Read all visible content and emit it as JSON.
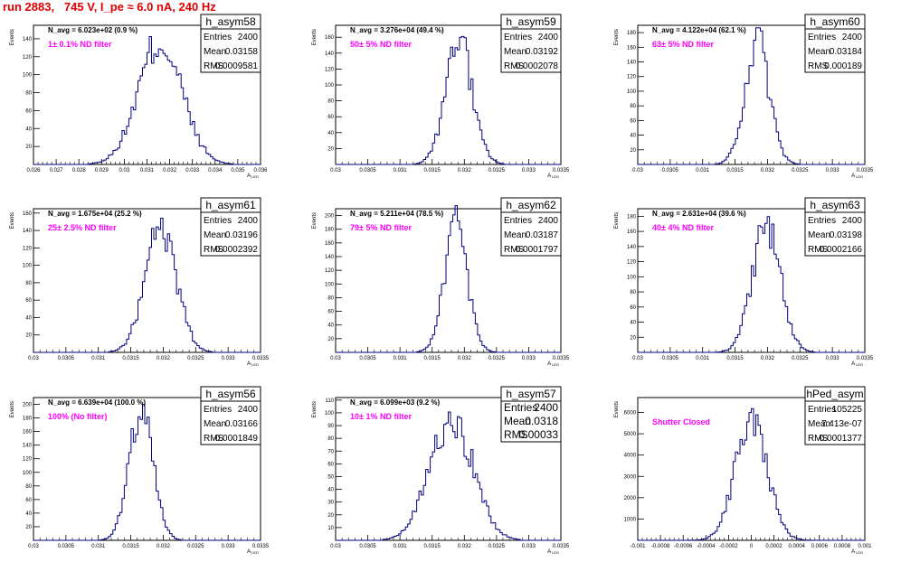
{
  "title": "run 2883,   745 V, I_pe ≈ 6.0 nA, 240 Hz",
  "colors": {
    "title": "#e00000",
    "histogram": "#000080",
    "annotation": "#ff00ff"
  },
  "chart_data": [
    {
      "type": "histogram",
      "name": "h_asym58",
      "navg": "N_avg = 6.023e+02 (0.9 %)",
      "annotation": "1± 0.1% ND filter",
      "entries": "2400",
      "mean": "0.03158",
      "rms": "0.0009581",
      "xlim": [
        0.026,
        0.036
      ],
      "ylim": [
        0,
        155
      ],
      "xticks": [
        "0.026",
        "0.027",
        "0.028",
        "0.029",
        "0.03",
        "0.031",
        "0.032",
        "0.033",
        "0.034",
        "0.035",
        "0.036"
      ],
      "yticks": [
        20,
        40,
        60,
        80,
        100,
        120,
        140
      ],
      "ylabel": "Events",
      "xlabel": "A_LED"
    },
    {
      "type": "histogram",
      "name": "h_asym59",
      "navg": "N_avg = 3.276e+04 (49.4 %)",
      "annotation": "50± 5% ND filter",
      "entries": "2400",
      "mean": "0.03192",
      "rms": "0.0002078",
      "xlim": [
        0.03,
        0.0335
      ],
      "ylim": [
        0,
        175
      ],
      "xticks": [
        "0.03",
        "0.0305",
        "0.031",
        "0.0315",
        "0.032",
        "0.0325",
        "0.033",
        "0.0335"
      ],
      "yticks": [
        20,
        40,
        60,
        80,
        100,
        120,
        140,
        160
      ],
      "ylabel": "Events",
      "xlabel": "A_LED"
    },
    {
      "type": "histogram",
      "name": "h_asym60",
      "navg": "N_avg = 4.122e+04 (62.1 %)",
      "annotation": "63± 5% ND filter",
      "entries": "2400",
      "mean": "0.03184",
      "rms": "0.000189",
      "xlim": [
        0.03,
        0.0335
      ],
      "ylim": [
        0,
        190
      ],
      "xticks": [
        "0.03",
        "0.0305",
        "0.031",
        "0.0315",
        "0.032",
        "0.0325",
        "0.033",
        "0.0335"
      ],
      "yticks": [
        20,
        40,
        60,
        80,
        100,
        120,
        140,
        160,
        180
      ],
      "ylabel": "Events",
      "xlabel": "A_LED"
    },
    {
      "type": "histogram",
      "name": "h_asym61",
      "navg": "N_avg = 1.675e+04 (25.2 %)",
      "annotation": "25± 2.5% ND filter",
      "entries": "2400",
      "mean": "0.03196",
      "rms": "0.0002392",
      "xlim": [
        0.03,
        0.0335
      ],
      "ylim": [
        0,
        165
      ],
      "xticks": [
        "0.03",
        "0.0305",
        "0.031",
        "0.0315",
        "0.032",
        "0.0325",
        "0.033",
        "0.0335"
      ],
      "yticks": [
        20,
        40,
        60,
        80,
        100,
        120,
        140,
        160
      ],
      "ylabel": "Events",
      "xlabel": "A_LED"
    },
    {
      "type": "histogram",
      "name": "h_asym62",
      "navg": "N_avg = 5.211e+04 (78.5 %)",
      "annotation": "79± 5% ND filter",
      "entries": "2400",
      "mean": "0.03187",
      "rms": "0.0001797",
      "xlim": [
        0.03,
        0.0335
      ],
      "ylim": [
        0,
        210
      ],
      "xticks": [
        "0.03",
        "0.0305",
        "0.031",
        "0.0315",
        "0.032",
        "0.0325",
        "0.033",
        "0.0335"
      ],
      "yticks": [
        20,
        40,
        60,
        80,
        100,
        120,
        140,
        160,
        180,
        200
      ],
      "ylabel": "Events",
      "xlabel": "A_LED"
    },
    {
      "type": "histogram",
      "name": "h_asym63",
      "navg": "N_avg = 2.631e+04 (39.6 %)",
      "annotation": "40± 4% ND filter",
      "entries": "2400",
      "mean": "0.03198",
      "rms": "0.0002166",
      "xlim": [
        0.03,
        0.0335
      ],
      "ylim": [
        0,
        190
      ],
      "xticks": [
        "0.03",
        "0.0305",
        "0.031",
        "0.0315",
        "0.032",
        "0.0325",
        "0.033",
        "0.0335"
      ],
      "yticks": [
        20,
        40,
        60,
        80,
        100,
        120,
        140,
        160,
        180
      ],
      "ylabel": "Events",
      "xlabel": "A_LED"
    },
    {
      "type": "histogram",
      "name": "h_asym56",
      "navg": "N_avg = 6.639e+04 (100.0 %)",
      "annotation": "100% (No filter)",
      "entries": "2400",
      "mean": "0.03166",
      "rms": "0.0001849",
      "xlim": [
        0.03,
        0.0335
      ],
      "ylim": [
        0,
        210
      ],
      "xticks": [
        "0.03",
        "0.0305",
        "0.031",
        "0.0315",
        "0.032",
        "0.0325",
        "0.033",
        "0.0335"
      ],
      "yticks": [
        20,
        40,
        60,
        80,
        100,
        120,
        140,
        160,
        180,
        200
      ],
      "ylabel": "Events",
      "xlabel": "A_LED"
    },
    {
      "type": "histogram",
      "name": "h_asym57",
      "navg": "N_avg = 6.099e+03 (9.2 %)",
      "annotation": "10± 1% ND filter",
      "entries": "2400",
      "mean": "0.0318",
      "rms": "0.00033",
      "xlim": [
        0.03,
        0.0335
      ],
      "ylim": [
        0,
        112
      ],
      "xticks": [
        "0.03",
        "0.0305",
        "0.031",
        "0.0315",
        "0.032",
        "0.0325",
        "0.033",
        "0.0335"
      ],
      "yticks": [
        10,
        20,
        30,
        40,
        50,
        60,
        70,
        80,
        90,
        100,
        110
      ],
      "ylabel": "Events",
      "xlabel": "A_LED"
    },
    {
      "type": "histogram",
      "name": "hPed_asym",
      "navg": "",
      "annotation": "Shutter Closed",
      "entries": "105225",
      "mean": "7.413e-07",
      "rms": "0.0001377",
      "xlim": [
        -0.001,
        0.001
      ],
      "ylim": [
        0,
        6700
      ],
      "xticks": [
        "-0.001",
        "-0.0008",
        "-0.0006",
        "-0.0004",
        "-0.0002",
        "0",
        "0.0002",
        "0.0004",
        "0.0006",
        "0.0008",
        "0.001"
      ],
      "yticks": [
        1000,
        2000,
        3000,
        4000,
        5000,
        6000
      ],
      "ylabel": "Events",
      "xlabel": "A_LED"
    }
  ]
}
